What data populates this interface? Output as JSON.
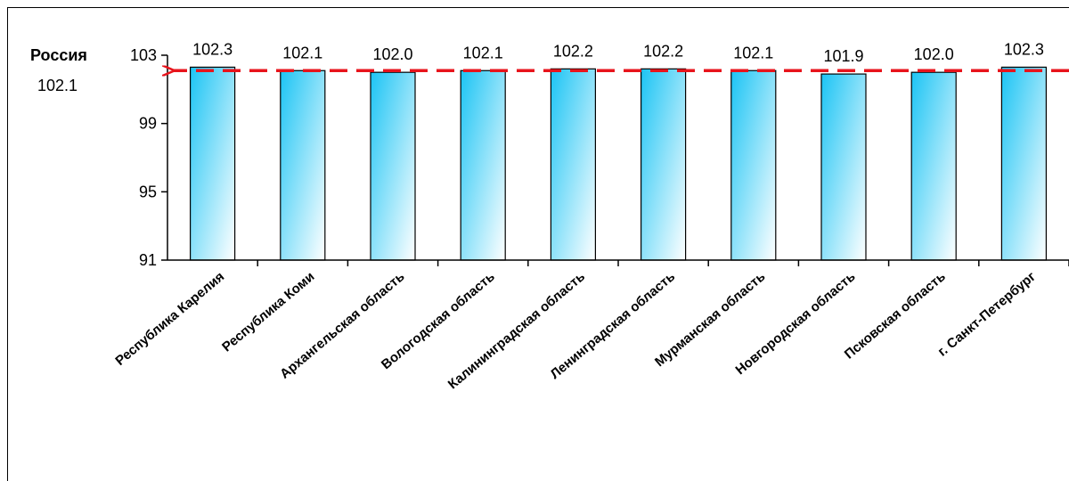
{
  "chart_data": {
    "type": "bar",
    "categories": [
      "Республика Карелия",
      "Республика Коми",
      "Архангельская область",
      "Вологодская область",
      "Калининградская область",
      "Ленинградская область",
      "Мурманская область",
      "Новгородская область",
      "Псковская область",
      "г. Санкт-Петербург"
    ],
    "values": [
      102.3,
      102.1,
      102.0,
      102.1,
      102.2,
      102.2,
      102.1,
      101.9,
      102.0,
      102.3
    ],
    "data_labels": [
      "102.3",
      "102.1",
      "102.0",
      "102.1",
      "102.2",
      "102.2",
      "102.1",
      "101.9",
      "102.0",
      "102.3"
    ],
    "ylim": [
      91,
      103
    ],
    "yticks": [
      "91",
      "95",
      "99",
      "103"
    ],
    "grid": false,
    "reference_line": {
      "name": "Россия",
      "value": 102.1,
      "label": "102.1",
      "color": "#e8141c",
      "style": "dashed"
    },
    "bar_gradient": [
      "#1cc4f4",
      "#ffffff"
    ],
    "bar_stroke": "#000000"
  }
}
